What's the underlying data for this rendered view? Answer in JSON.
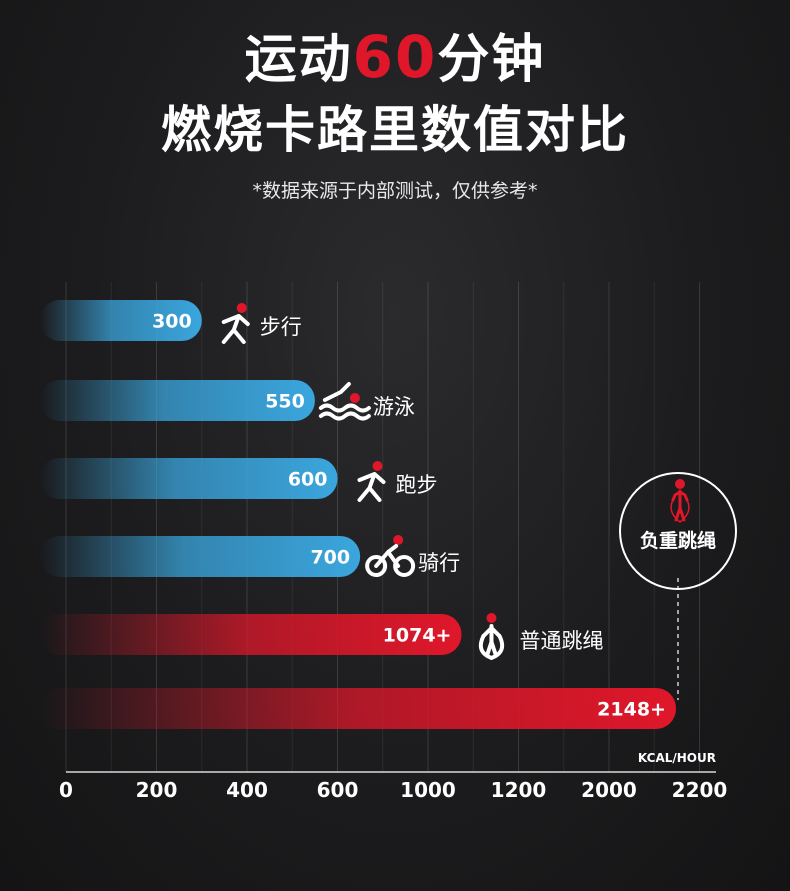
{
  "header": {
    "title_prefix": "运动",
    "title_highlight": "60",
    "title_suffix": "分钟",
    "title_line2": "燃烧卡路里数值对比",
    "note": "*数据来源于内部测试，仅供参考*"
  },
  "callout": {
    "label": "负重跳绳",
    "icon": "jump-rope-person-icon"
  },
  "colors": {
    "blue": "#3aa6de",
    "red": "#e0172a",
    "accent_dot": "#e0172a"
  },
  "chart_data": {
    "type": "bar",
    "orientation": "horizontal",
    "title": "",
    "xlabel": "KCAL/HOUR",
    "ylabel": "",
    "x_ticks": [
      "0",
      "200",
      "400",
      "600",
      "1000",
      "1200",
      "2000",
      "2200"
    ],
    "grid": true,
    "categories": [
      "步行",
      "游泳",
      "跑步",
      "骑行",
      "普通跳绳",
      ""
    ],
    "values": [
      300,
      550,
      600,
      700,
      1074,
      2148
    ],
    "value_labels": [
      "300",
      "550",
      "600",
      "700",
      "1074+",
      "2148+"
    ],
    "bar_colors": [
      "blue",
      "blue",
      "blue",
      "blue",
      "red",
      "red"
    ],
    "icons": [
      "walking-person-icon",
      "swimmer-icon",
      "runner-icon",
      "cyclist-icon",
      "jump-rope-person-icon",
      ""
    ]
  }
}
